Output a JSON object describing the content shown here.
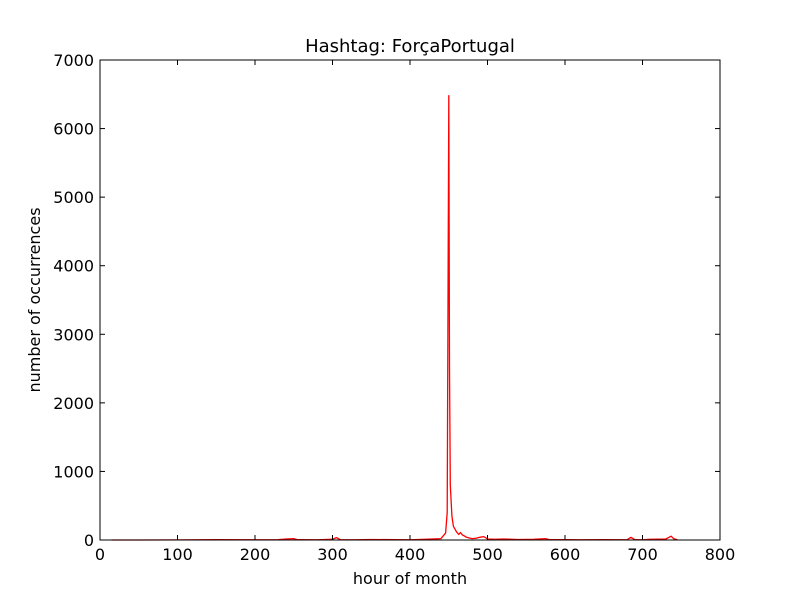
{
  "chart_data": {
    "type": "line",
    "title": "Hashtag: ForçaPortugal",
    "xlabel": "hour of month",
    "ylabel": "number of occurrences",
    "xlim": [
      0,
      800
    ],
    "ylim": [
      0,
      7000
    ],
    "xticks": [
      "0",
      "100",
      "200",
      "300",
      "400",
      "500",
      "600",
      "700",
      "800"
    ],
    "yticks": [
      "0",
      "1000",
      "2000",
      "3000",
      "4000",
      "5000",
      "6000",
      "7000"
    ],
    "grid": false,
    "line_color": "#ff0000",
    "series": [
      {
        "values": [
          [
            15,
            0
          ],
          [
            50,
            0
          ],
          [
            100,
            2
          ],
          [
            150,
            5
          ],
          [
            200,
            3
          ],
          [
            230,
            5
          ],
          [
            240,
            15
          ],
          [
            250,
            20
          ],
          [
            255,
            5
          ],
          [
            280,
            3
          ],
          [
            300,
            10
          ],
          [
            305,
            35
          ],
          [
            310,
            5
          ],
          [
            330,
            3
          ],
          [
            350,
            8
          ],
          [
            380,
            5
          ],
          [
            400,
            3
          ],
          [
            420,
            10
          ],
          [
            440,
            20
          ],
          [
            446,
            100
          ],
          [
            448,
            400
          ],
          [
            450,
            6480
          ],
          [
            451,
            2500
          ],
          [
            452,
            800
          ],
          [
            454,
            350
          ],
          [
            456,
            200
          ],
          [
            460,
            120
          ],
          [
            463,
            80
          ],
          [
            465,
            110
          ],
          [
            468,
            70
          ],
          [
            470,
            60
          ],
          [
            473,
            40
          ],
          [
            476,
            30
          ],
          [
            480,
            20
          ],
          [
            485,
            25
          ],
          [
            490,
            40
          ],
          [
            495,
            50
          ],
          [
            498,
            30
          ],
          [
            500,
            15
          ],
          [
            510,
            10
          ],
          [
            520,
            15
          ],
          [
            540,
            8
          ],
          [
            560,
            10
          ],
          [
            575,
            20
          ],
          [
            580,
            5
          ],
          [
            600,
            5
          ],
          [
            620,
            3
          ],
          [
            650,
            5
          ],
          [
            680,
            3
          ],
          [
            685,
            40
          ],
          [
            690,
            5
          ],
          [
            700,
            3
          ],
          [
            710,
            10
          ],
          [
            730,
            15
          ],
          [
            737,
            55
          ],
          [
            740,
            20
          ],
          [
            745,
            5
          ]
        ]
      }
    ]
  }
}
